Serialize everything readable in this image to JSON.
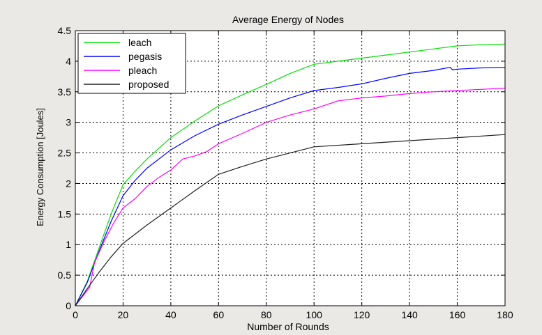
{
  "chart_data": {
    "type": "line",
    "title": "Average Energy of Nodes",
    "xlabel": "Number of Rounds",
    "ylabel": "Energy Consumption [Joules]",
    "xlim": [
      0,
      180
    ],
    "ylim": [
      0,
      4.5
    ],
    "xticks": [
      0,
      20,
      40,
      60,
      80,
      100,
      120,
      140,
      160,
      180
    ],
    "yticks": [
      0,
      0.5,
      1,
      1.5,
      2,
      2.5,
      3,
      3.5,
      4,
      4.5
    ],
    "xtick_labels": [
      "0",
      "20",
      "40",
      "60",
      "80",
      "100",
      "120",
      "140",
      "160",
      "180"
    ],
    "ytick_labels": [
      "0",
      "0.5",
      "1",
      "1.5",
      "2",
      "2.5",
      "3",
      "3.5",
      "4",
      "4.5"
    ],
    "grid": true,
    "legend_position": "top-left",
    "series": [
      {
        "name": "leach",
        "color": "#00e000",
        "x": [
          0,
          5,
          10,
          15,
          20,
          25,
          30,
          40,
          50,
          60,
          70,
          80,
          90,
          100,
          110,
          120,
          130,
          140,
          150,
          160,
          170,
          180
        ],
        "y": [
          0,
          0.4,
          0.95,
          1.5,
          1.98,
          2.2,
          2.4,
          2.75,
          3.02,
          3.27,
          3.45,
          3.62,
          3.8,
          3.95,
          4.0,
          4.05,
          4.1,
          4.15,
          4.2,
          4.25,
          4.27,
          4.28
        ]
      },
      {
        "name": "pegasis",
        "color": "#0000ff",
        "x": [
          0,
          5,
          10,
          15,
          20,
          25,
          30,
          40,
          50,
          60,
          70,
          80,
          90,
          100,
          110,
          120,
          130,
          140,
          150,
          157,
          158,
          160,
          170,
          180
        ],
        "y": [
          0,
          0.38,
          0.9,
          1.38,
          1.8,
          2.05,
          2.25,
          2.55,
          2.78,
          2.97,
          3.12,
          3.26,
          3.4,
          3.52,
          3.57,
          3.63,
          3.72,
          3.8,
          3.85,
          3.9,
          3.86,
          3.87,
          3.89,
          3.9
        ]
      },
      {
        "name": "pleach",
        "color": "#ff00ff",
        "x": [
          0,
          3,
          6,
          8,
          12,
          16,
          20,
          25,
          30,
          35,
          40,
          45,
          50,
          55,
          60,
          70,
          80,
          90,
          100,
          110,
          120,
          130,
          140,
          150,
          160,
          170,
          180
        ],
        "y": [
          0,
          0.15,
          0.3,
          0.7,
          1.05,
          1.35,
          1.6,
          1.75,
          1.95,
          2.1,
          2.22,
          2.4,
          2.45,
          2.52,
          2.65,
          2.82,
          3.0,
          3.12,
          3.22,
          3.35,
          3.4,
          3.43,
          3.47,
          3.5,
          3.52,
          3.54,
          3.56
        ]
      },
      {
        "name": "proposed",
        "color": "#202020",
        "x": [
          0,
          5,
          10,
          15,
          20,
          30,
          40,
          50,
          60,
          70,
          80,
          90,
          100,
          120,
          140,
          160,
          180
        ],
        "y": [
          0,
          0.28,
          0.55,
          0.8,
          1.02,
          1.32,
          1.6,
          1.88,
          2.15,
          2.28,
          2.4,
          2.5,
          2.6,
          2.65,
          2.7,
          2.75,
          2.8
        ]
      }
    ]
  }
}
